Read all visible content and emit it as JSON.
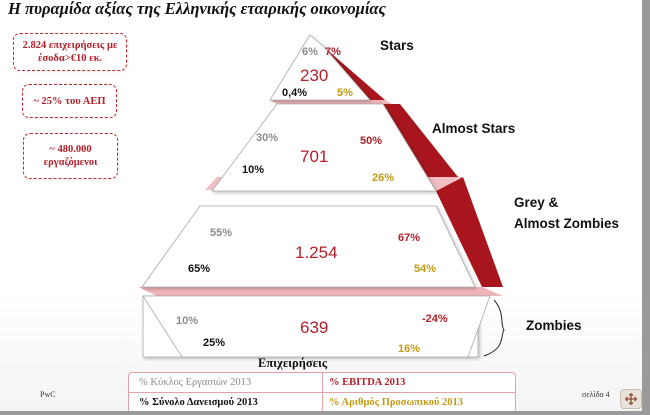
{
  "title": "Η πυραμίδα αξίας της Ελληνικής εταιρικής οικονομίας",
  "stats": [
    "2.824 επιχειρήσεις με έσοδα>€10 εκ.",
    "~ 25% του ΑΕΠ",
    "~ 480.000 εργαζόμενοι"
  ],
  "tiers": [
    {
      "label": "Stars",
      "companies": "230",
      "revenue_share": "6%",
      "ebitda_share": "7%",
      "debt_share": "0,4%",
      "staff_share": "5%"
    },
    {
      "label": "Almost Stars",
      "companies": "701",
      "revenue_share": "30%",
      "ebitda_share": "50%",
      "debt_share": "10%",
      "staff_share": "26%"
    },
    {
      "label_line1": "Grey &",
      "label_line2": "Almost Zombies",
      "companies": "1.254",
      "revenue_share": "55%",
      "ebitda_share": "67%",
      "debt_share": "65%",
      "staff_share": "54%"
    },
    {
      "label": "Zombies",
      "companies": "639",
      "revenue_share": "10%",
      "ebitda_share": "-24%",
      "debt_share": "25%",
      "staff_share": "16%"
    }
  ],
  "companies_header": "Επιχειρήσεις",
  "legend": {
    "revenue": "% Κύκλος Εργασιών 2013",
    "ebitda": "% EBITDA  2013",
    "debt": "% Σύνολο Δανεισμού 2013",
    "staff": "% Αριθμός Προσωπικού 2013"
  },
  "footer": {
    "brand": "PwC",
    "page": "σελίδα 4"
  },
  "colors": {
    "accent_red": "#b3202a",
    "gold": "#c49a14",
    "grey": "#8c8c8c",
    "band_pink": "#efb4b8",
    "dark_red": "#a8151d"
  },
  "icons": {
    "control": "expand-icon"
  }
}
